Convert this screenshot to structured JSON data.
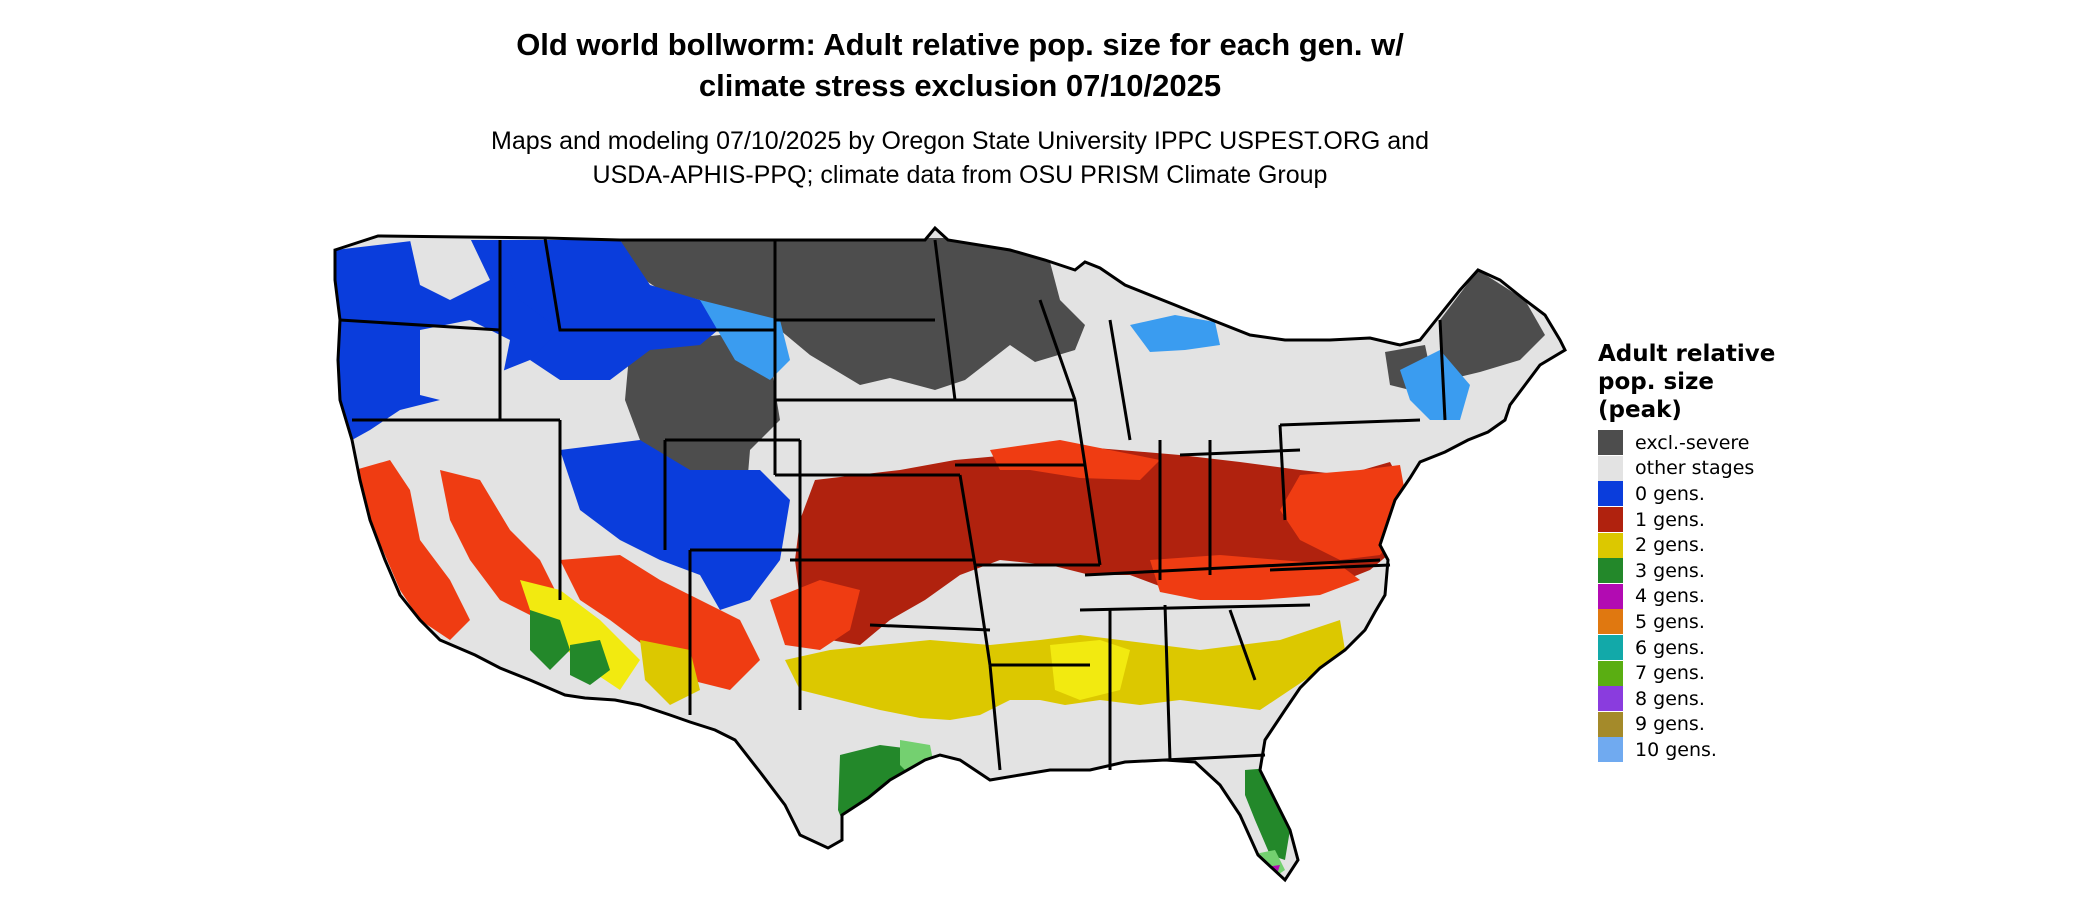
{
  "title": {
    "line1": "Old world bollworm: Adult relative pop. size for each gen. w/",
    "line2": "climate stress exclusion 07/10/2025"
  },
  "subtitle": {
    "line1": "Maps and modeling 07/10/2025 by Oregon State University IPPC USPEST.ORG and",
    "line2": "USDA-APHIS-PPQ; climate data from OSU PRISM Climate Group"
  },
  "legend": {
    "title_lines": [
      "Adult relative",
      "pop. size",
      "(peak)"
    ],
    "items": [
      {
        "label": "excl.-severe",
        "color": "#4d4d4d"
      },
      {
        "label": "other stages",
        "color": "#e3e3e3"
      },
      {
        "label": "0 gens.",
        "color": "#0a3ddc"
      },
      {
        "label": "1 gens.",
        "color": "#b0220e"
      },
      {
        "label": "2 gens.",
        "color": "#dcc800"
      },
      {
        "label": "3 gens.",
        "color": "#23882a"
      },
      {
        "label": "4 gens.",
        "color": "#b20bb2"
      },
      {
        "label": "5 gens.",
        "color": "#e07810"
      },
      {
        "label": "6 gens.",
        "color": "#12a9a9"
      },
      {
        "label": "7 gens.",
        "color": "#5aae12"
      },
      {
        "label": "8 gens.",
        "color": "#8a3cde"
      },
      {
        "label": "9 gens.",
        "color": "#a48a2a"
      },
      {
        "label": "10 gens.",
        "color": "#70aaf0"
      }
    ]
  },
  "map_colors": {
    "land": "#e3e3e3",
    "excluded": "#4d4d4d",
    "gen0": "#0a3ddc",
    "gen0_light": "#3a9cf0",
    "gen1": "#b0220e",
    "gen1_bright": "#ef3c12",
    "gen2": "#dcc800",
    "gen2_bright": "#f2ea10",
    "gen3": "#23882a",
    "gen3_light": "#74d070",
    "gen4": "#b20bb2",
    "border": "#000000"
  }
}
